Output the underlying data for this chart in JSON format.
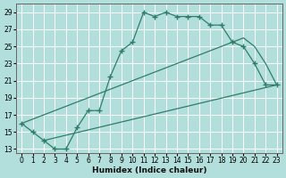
{
  "xlabel": "Humidex (Indice chaleur)",
  "background_color": "#b2dfdb",
  "grid_color": "#ffffff",
  "line_color": "#2e7d6b",
  "x_ticks": [
    0,
    1,
    2,
    3,
    4,
    5,
    6,
    7,
    8,
    9,
    10,
    11,
    12,
    13,
    14,
    15,
    16,
    17,
    18,
    19,
    20,
    21,
    22,
    23
  ],
  "y_ticks": [
    13,
    15,
    17,
    19,
    21,
    23,
    25,
    27,
    29
  ],
  "xlim": [
    -0.5,
    23.5
  ],
  "ylim": [
    12.5,
    30.0
  ],
  "line1_x": [
    0,
    1,
    2,
    3,
    4,
    5,
    6,
    7,
    8,
    9,
    10,
    11,
    12,
    13,
    14,
    15,
    16,
    17,
    18,
    19,
    20,
    21,
    22,
    23
  ],
  "line1_y": [
    16,
    15,
    14,
    13,
    13,
    15.5,
    17.5,
    17.5,
    21.5,
    24.5,
    25.5,
    29,
    28.5,
    29,
    28.5,
    28.5,
    28.5,
    27.5,
    27.5,
    25.5,
    25,
    23,
    20.5,
    20.5
  ],
  "line2_x": [
    0,
    19,
    20,
    21,
    22,
    23
  ],
  "line2_y": [
    16,
    25.5,
    26,
    25,
    23,
    20.5
  ],
  "line3_x": [
    2,
    23
  ],
  "line3_y": [
    14,
    20.5
  ],
  "marker": "+",
  "markersize": 4,
  "linewidth": 0.9,
  "tick_fontsize": 5.5,
  "xlabel_fontsize": 6.5
}
